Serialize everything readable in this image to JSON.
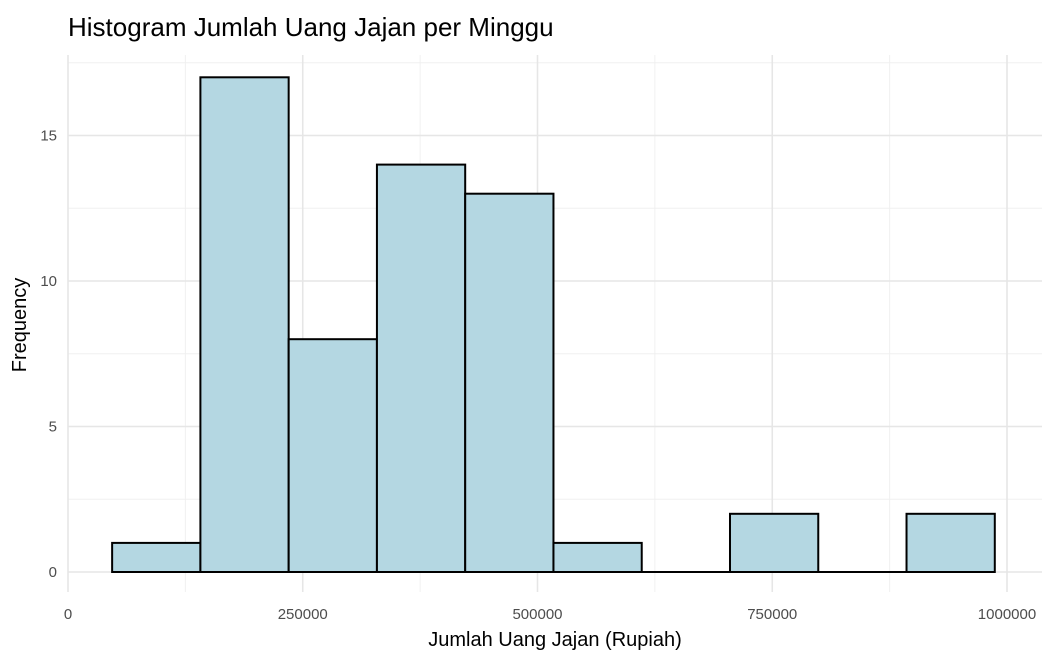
{
  "chart_data": {
    "type": "bar",
    "subtype": "histogram",
    "title": "Histogram Jumlah Uang Jajan per Minggu",
    "xlabel": "Jumlah Uang Jajan (Rupiah)",
    "ylabel": "Frequency",
    "bin_edges": [
      47000,
      141000,
      235000,
      329000,
      423000,
      517000,
      611000,
      705000,
      799000,
      893000,
      987000
    ],
    "values": [
      1,
      17,
      8,
      14,
      13,
      1,
      0,
      2,
      0,
      2
    ],
    "xlim": [
      0,
      1050000
    ],
    "ylim": [
      0,
      17.5
    ],
    "x_ticks": [
      0,
      250000,
      500000,
      750000,
      1000000
    ],
    "x_tick_labels": [
      "0",
      "250000",
      "500000",
      "750000",
      "1000000"
    ],
    "y_ticks": [
      0,
      5,
      10,
      15
    ],
    "y_tick_labels": [
      "0",
      "5",
      "10",
      "15"
    ],
    "bar_color": "#b4d7e2",
    "bar_edge_color": "#000000",
    "grid": true,
    "legend": "none"
  }
}
